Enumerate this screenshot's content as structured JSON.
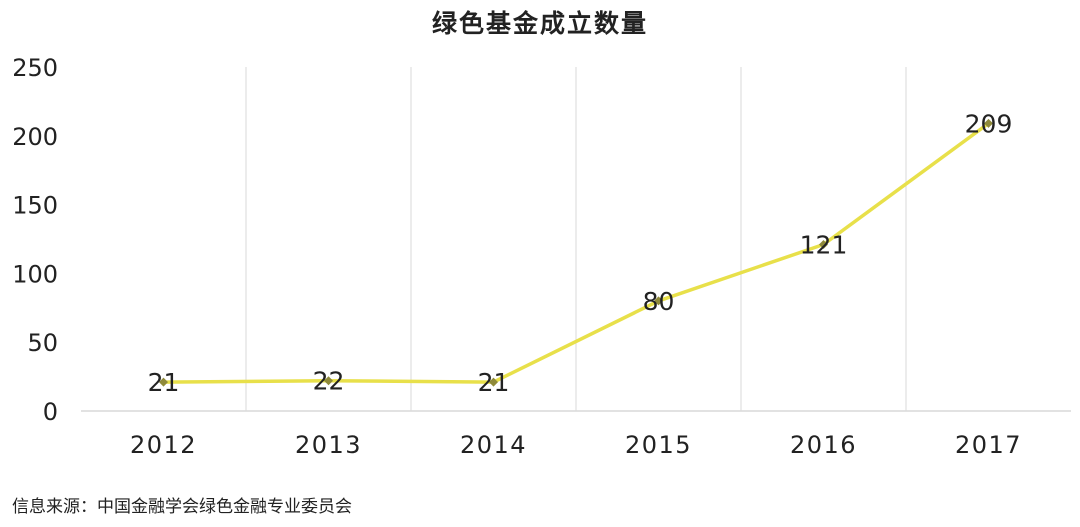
{
  "chart_data": {
    "type": "line",
    "title": "绿色基金成立数量",
    "categories": [
      "2012",
      "2013",
      "2014",
      "2015",
      "2016",
      "2017"
    ],
    "series": [
      {
        "values": [
          21,
          22,
          21,
          80,
          121,
          209
        ]
      }
    ],
    "data_labels": [
      "21",
      "22",
      "21",
      "80",
      "121",
      "209"
    ],
    "y_ticks": [
      "0",
      "50",
      "100",
      "150",
      "200",
      "250"
    ],
    "ylim": [
      0,
      250
    ],
    "xlabel": "",
    "ylabel": "",
    "grid": "vertical",
    "legend": "none",
    "colors": {
      "line": "#e8e04a",
      "marker": "#8f8a3a",
      "grid": "#d9d9d9",
      "axis": "#d9d9d9",
      "text": "#222222"
    }
  },
  "source_note": "信息来源：中国金融学会绿色金融专业委员会"
}
